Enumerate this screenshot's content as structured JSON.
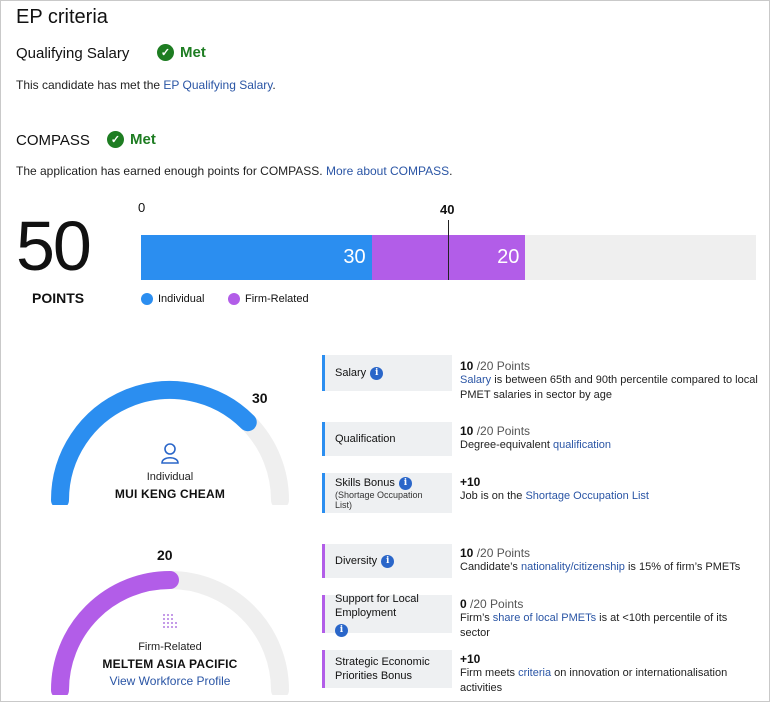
{
  "header": {
    "title": "EP criteria"
  },
  "qualifying_salary": {
    "title": "Qualifying Salary",
    "status": "Met",
    "text_pre": "This candidate has met the ",
    "link": "EP Qualifying Salary",
    "text_post": "."
  },
  "compass": {
    "title": "COMPASS",
    "status": "Met",
    "text_pre": "The application has earned enough points for COMPASS. ",
    "link": "More about COMPASS",
    "text_post": "."
  },
  "score": {
    "total": "50",
    "total_label": "POINTS",
    "axis_start": "0",
    "pass_mark": "40",
    "individual": 30,
    "firm": 20,
    "max": 80,
    "individual_label": "30",
    "firm_label": "20",
    "legend_individual": "Individual",
    "legend_firm": "Firm-Related"
  },
  "colors": {
    "individual": "#2b8ef0",
    "firm": "#b25de8",
    "met": "#1e7d22",
    "link": "#2a55a5"
  },
  "individual_gauge": {
    "value": "30",
    "fraction": 0.75,
    "category": "Individual",
    "name": "MUI KENG CHEAM",
    "icon": "person-icon"
  },
  "firm_gauge": {
    "value": "20",
    "fraction": 0.5,
    "category": "Firm-Related",
    "name": "MELTEM ASIA PACIFIC",
    "link": "View Workforce Profile",
    "icon": "building-icon"
  },
  "criteria": [
    {
      "label": "Salary",
      "sub": "",
      "points": "10",
      "of": " /20 Points",
      "link": "Salary",
      "desc_pre": "",
      "desc_post": " is between 65th and 90th percentile compared to local PMET salaries in sector by age"
    },
    {
      "label": "Qualification",
      "sub": "",
      "points": "10",
      "of": " /20 Points",
      "desc_pre": "Degree-equivalent ",
      "link": "qualification",
      "desc_post": ""
    },
    {
      "label": "Skills Bonus",
      "sub": "(Shortage Occupation List)",
      "points": "+10",
      "of": "",
      "desc_pre": "Job is on the ",
      "link": "Shortage Occupation List",
      "desc_post": ""
    },
    {
      "label": "Diversity",
      "sub": "",
      "points": "10",
      "of": " /20 Points",
      "desc_pre": "Candidate’s ",
      "link": "nationality/citizenship",
      "desc_post": " is 15% of firm’s PMETs"
    },
    {
      "label": "Support for Local Employment",
      "sub": "",
      "points": "0",
      "of": " /20 Points",
      "desc_pre": "Firm’s ",
      "link": "share of local PMETs",
      "desc_post": " is at <10th percentile of its sector"
    },
    {
      "label": "Strategic Economic Priorities Bonus",
      "sub": "",
      "points": "+10",
      "of": "",
      "desc_pre": "Firm meets ",
      "link": "criteria",
      "desc_post": " on innovation or internationalisation activities"
    }
  ]
}
